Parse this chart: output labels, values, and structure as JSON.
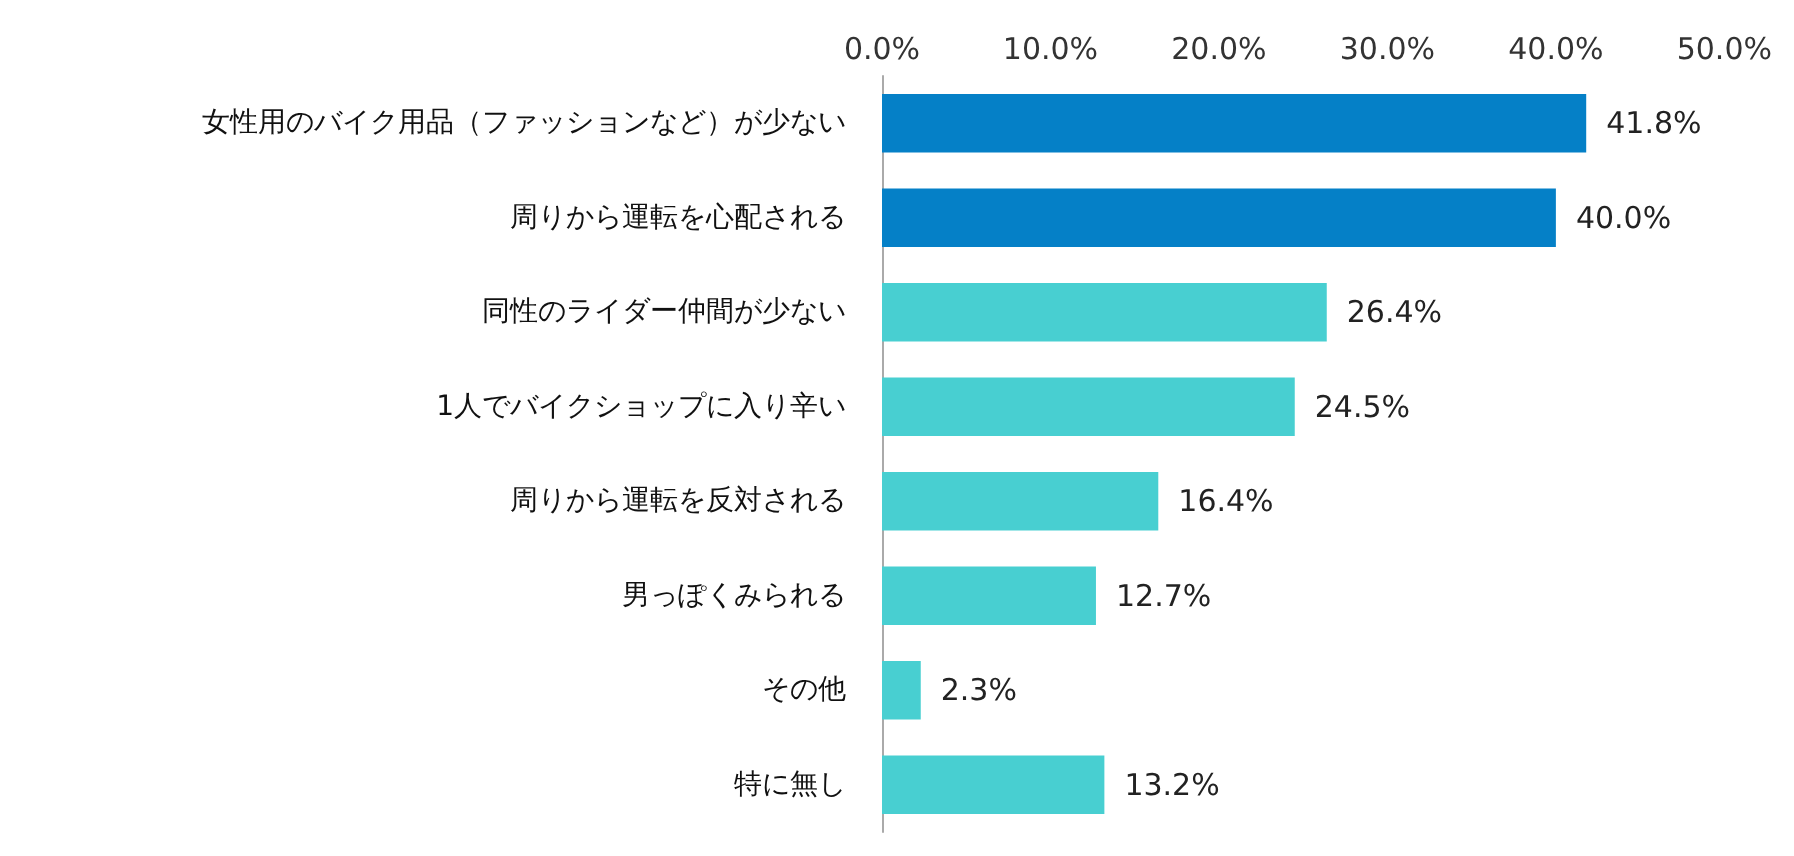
{
  "chart_data": {
    "type": "bar",
    "orientation": "horizontal",
    "categories": [
      "女性用のバイク用品（ファッションなど）が少ない",
      "周りから運転を心配される",
      "同性のライダー仲間が少ない",
      "1人でバイクショップに入り辛い",
      "周りから運転を反対される",
      "男っぽくみられる",
      "その他",
      "特に無し"
    ],
    "values": [
      41.8,
      40.0,
      26.4,
      24.5,
      16.4,
      12.7,
      2.3,
      13.2
    ],
    "colors": [
      "#0580c7",
      "#0580c7",
      "#48cfd1",
      "#48cfd1",
      "#48cfd1",
      "#48cfd1",
      "#48cfd1",
      "#48cfd1"
    ],
    "value_labels": [
      "41.8%",
      "40.0%",
      "26.4%",
      "24.5%",
      "16.4%",
      "12.7%",
      "2.3%",
      "13.2%"
    ],
    "xlim": [
      0,
      50
    ],
    "xticks": [
      {
        "value": 0,
        "label": "0.0%"
      },
      {
        "value": 10,
        "label": "10.0%"
      },
      {
        "value": 20,
        "label": "20.0%"
      },
      {
        "value": 30,
        "label": "30.0%"
      },
      {
        "value": 40,
        "label": "40.0%"
      },
      {
        "value": 50,
        "label": "50.0%"
      }
    ],
    "grid": false
  }
}
